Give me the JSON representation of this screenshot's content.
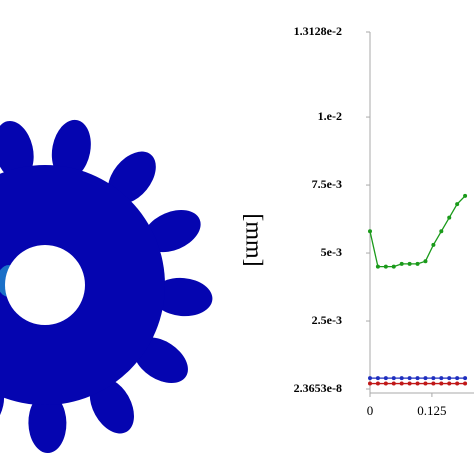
{
  "chart_data": {
    "type": "line",
    "ylabel": "[mm]",
    "x": [
      0,
      0.016,
      0.032,
      0.048,
      0.064,
      0.08,
      0.096,
      0.112,
      0.128,
      0.144,
      0.16,
      0.176,
      0.192
    ],
    "series": [
      {
        "color": "#1a9a1a",
        "values": [
          0.0058,
          0.0045,
          0.0045,
          0.0045,
          0.0046,
          0.0046,
          0.0046,
          0.0047,
          0.0053,
          0.0058,
          0.0063,
          0.0068,
          0.0071
        ]
      },
      {
        "color": "#1f2fbf",
        "values": [
          0.0004,
          0.0004,
          0.0004,
          0.0004,
          0.0004,
          0.0004,
          0.0004,
          0.0004,
          0.0004,
          0.0004,
          0.0004,
          0.0004,
          0.0004
        ]
      },
      {
        "color": "#c01818",
        "values": [
          0.0002,
          0.0002,
          0.0002,
          0.0002,
          0.0002,
          0.0002,
          0.0002,
          0.0002,
          0.0002,
          0.0002,
          0.0002,
          0.0002,
          0.0002
        ]
      }
    ],
    "xlim": [
      0,
      0.21
    ],
    "xticks": [
      0,
      0.125
    ],
    "ylim": [
      2.3653e-08,
      0.013128
    ],
    "yticks": [
      {
        "value": 2.3653e-08,
        "label": "2.3653e-8"
      },
      {
        "value": 0.0025,
        "label": "2.5e-3"
      },
      {
        "value": 0.005,
        "label": "5e-3"
      },
      {
        "value": 0.0075,
        "label": "7.5e-3"
      },
      {
        "value": 0.01,
        "label": "1.e-2"
      },
      {
        "value": 0.013128,
        "label": "1.3128e-2"
      }
    ],
    "grid": false
  }
}
